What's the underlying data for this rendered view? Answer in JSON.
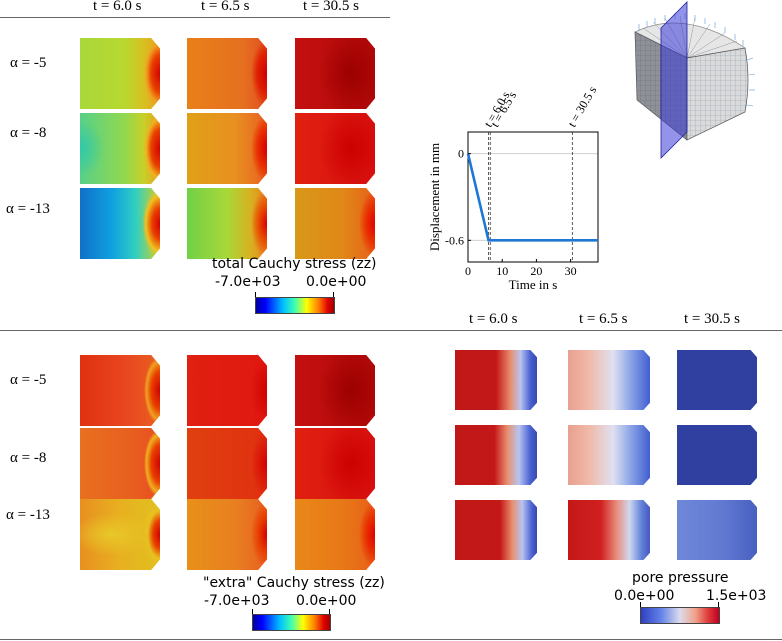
{
  "top": {
    "time_headers": [
      "t = 6.0 s",
      "t = 6.5 s",
      "t = 30.5 s"
    ],
    "alpha_labels": [
      "α = -5",
      "α = -8",
      "α = -13"
    ],
    "colorbar": {
      "title": "total Cauchy stress (zz)",
      "min_label": "-7.0e+03",
      "max_label": "0.0e+00",
      "scheme": "jet"
    }
  },
  "bottom_left": {
    "alpha_labels": [
      "α = -5",
      "α = -8",
      "α = -13"
    ],
    "colorbar": {
      "title": "\"extra\" Cauchy stress (zz)",
      "min_label": "-7.0e+03",
      "max_label": "0.0e+00",
      "scheme": "jet"
    }
  },
  "bottom_right": {
    "time_headers": [
      "t = 6.0 s",
      "t = 6.5 s",
      "t = 30.5 s"
    ],
    "colorbar": {
      "title": "pore pressure",
      "min_label": "0.0e+00",
      "max_label": "1.5e+03",
      "scheme": "cool-warm"
    }
  },
  "chart_data": {
    "type": "line",
    "xlabel": "Time in s",
    "ylabel": "Displacement in mm",
    "xlim": [
      0,
      38
    ],
    "ylim": [
      -0.75,
      0.15
    ],
    "x_ticks": [
      0,
      10,
      20,
      30
    ],
    "y_ticks": [
      0,
      -0.6
    ],
    "y_tick_labels": [
      "0",
      "-0.6"
    ],
    "series": [
      {
        "x": [
          0,
          6.0,
          38
        ],
        "y": [
          0,
          -0.6,
          -0.6
        ],
        "color": "#1f77d4"
      }
    ],
    "markers": [
      {
        "x": 6.0,
        "label": "t = 6.0 s"
      },
      {
        "x": 6.5,
        "label": "t = 6.5 s"
      },
      {
        "x": 30.5,
        "label": "t = 30.5 s"
      }
    ],
    "reference_lines": [
      0,
      -0.6
    ]
  }
}
